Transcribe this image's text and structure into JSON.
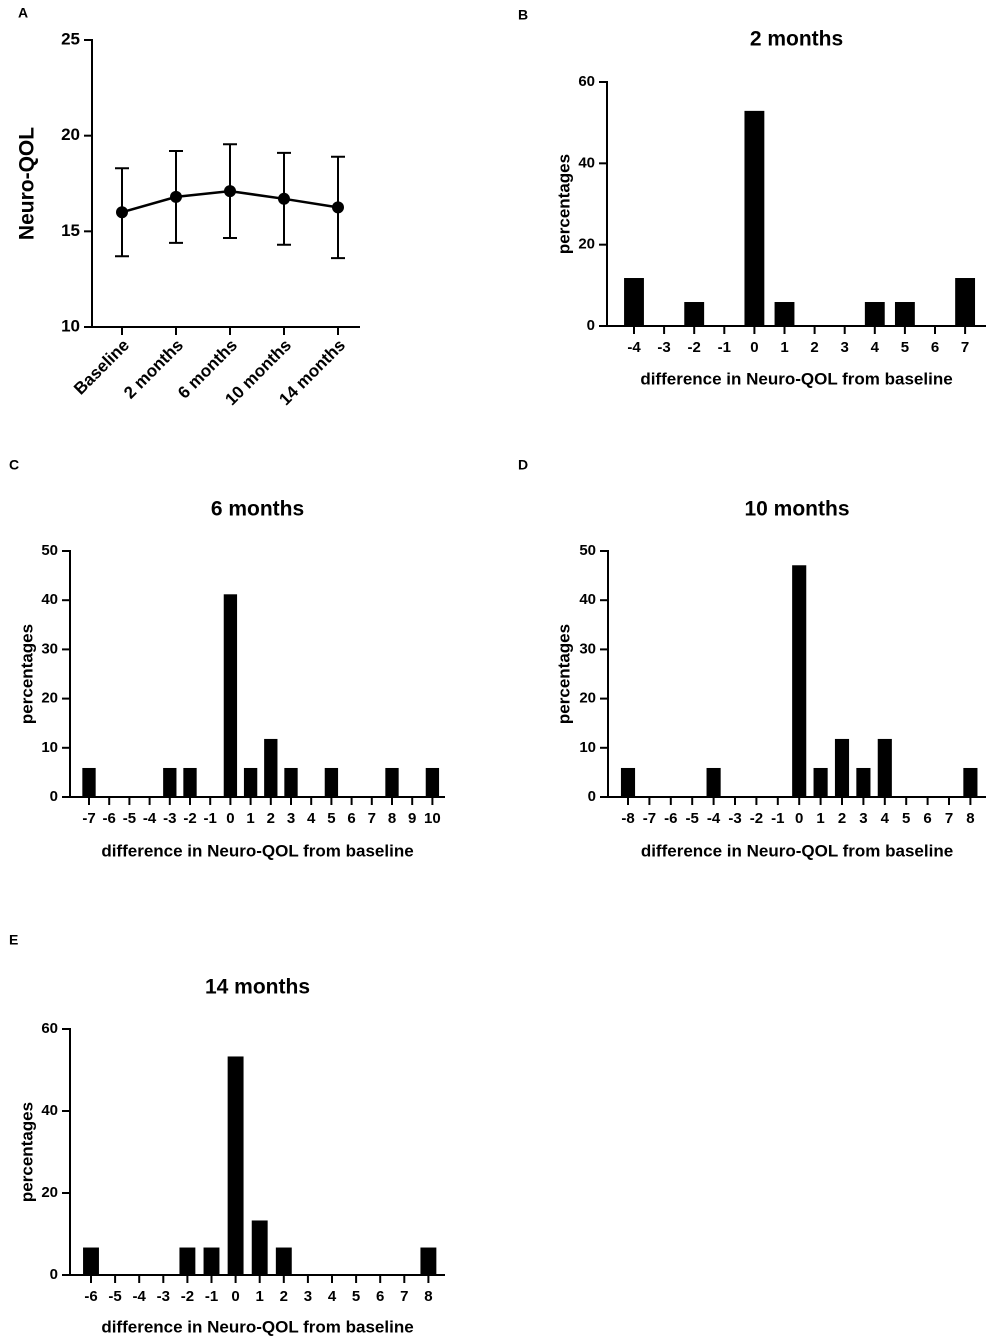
{
  "chart_data": [
    {
      "type": "line",
      "panel": "A",
      "ylabel": "Neuro-QOL",
      "categories": [
        "Baseline",
        "2 months",
        "6 months",
        "10 months",
        "14 months"
      ],
      "series": [
        {
          "color": "#000000",
          "values": [
            16.0,
            16.8,
            17.1,
            16.7,
            16.25
          ],
          "errors": [
            2.3,
            2.4,
            2.45,
            2.4,
            2.65
          ]
        }
      ],
      "ylim": [
        10,
        25
      ],
      "yticks": [
        10,
        15,
        20,
        25
      ]
    },
    {
      "type": "bar",
      "panel": "B",
      "title": "2 months",
      "xlabel": "difference in Neuro-QOL from baseline",
      "ylabel": "percentages",
      "categories": [
        "-4",
        "-3",
        "-2",
        "-1",
        "0",
        "1",
        "2",
        "3",
        "4",
        "5",
        "6",
        "7"
      ],
      "series": [
        {
          "color": "#000000",
          "values": [
            11.8,
            0,
            5.9,
            0,
            52.9,
            5.9,
            0,
            0,
            5.9,
            5.9,
            0,
            11.8
          ]
        }
      ],
      "ylim": [
        0,
        60
      ],
      "yticks": [
        0,
        20,
        40,
        60
      ]
    },
    {
      "type": "bar",
      "panel": "C",
      "title": "6 months",
      "xlabel": "difference in Neuro-QOL from baseline",
      "ylabel": "percentages",
      "categories": [
        "-7",
        "-6",
        "-5",
        "-4",
        "-3",
        "-2",
        "-1",
        "0",
        "1",
        "2",
        "3",
        "4",
        "5",
        "6",
        "7",
        "8",
        "9",
        "10"
      ],
      "series": [
        {
          "color": "#000000",
          "values": [
            5.9,
            0,
            0,
            0,
            5.9,
            5.9,
            0,
            41.2,
            5.9,
            11.8,
            5.9,
            0,
            5.9,
            0,
            0,
            5.9,
            0,
            5.9
          ]
        }
      ],
      "ylim": [
        0,
        50
      ],
      "yticks": [
        0,
        10,
        20,
        30,
        40,
        50
      ]
    },
    {
      "type": "bar",
      "panel": "D",
      "title": "10 months",
      "xlabel": "difference in Neuro-QOL from baseline",
      "ylabel": "percentages",
      "categories": [
        "-8",
        "-7",
        "-6",
        "-5",
        "-4",
        "-3",
        "-2",
        "-1",
        "0",
        "1",
        "2",
        "3",
        "4",
        "5",
        "6",
        "7",
        "8"
      ],
      "series": [
        {
          "color": "#000000",
          "values": [
            5.9,
            0,
            0,
            0,
            5.9,
            0,
            0,
            0,
            47.1,
            5.9,
            11.8,
            5.9,
            11.8,
            0,
            0,
            0,
            5.9
          ]
        }
      ],
      "ylim": [
        0,
        50
      ],
      "yticks": [
        0,
        10,
        20,
        30,
        40,
        50
      ]
    },
    {
      "type": "bar",
      "panel": "E",
      "title": "14 months",
      "xlabel": "difference in Neuro-QOL from baseline",
      "ylabel": "percentages",
      "categories": [
        "-6",
        "-5",
        "-4",
        "-3",
        "-2",
        "-1",
        "0",
        "1",
        "2",
        "3",
        "4",
        "5",
        "6",
        "7",
        "8"
      ],
      "series": [
        {
          "color": "#000000",
          "values": [
            6.7,
            0,
            0,
            0,
            6.7,
            6.7,
            53.3,
            13.3,
            6.7,
            0,
            0,
            0,
            0,
            0,
            6.7
          ]
        }
      ],
      "ylim": [
        0,
        60
      ],
      "yticks": [
        0,
        20,
        40,
        60
      ]
    }
  ]
}
